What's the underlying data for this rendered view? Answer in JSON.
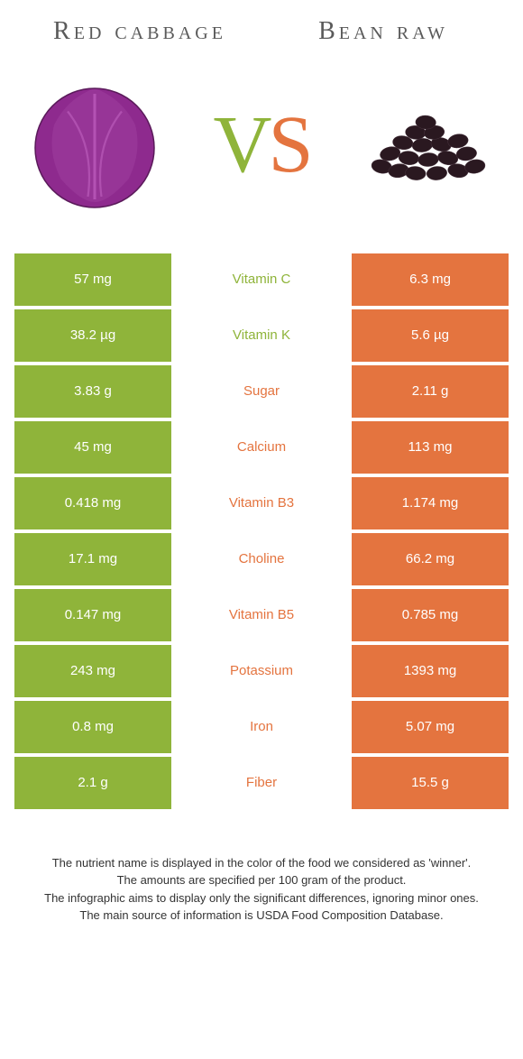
{
  "header": {
    "left_title": "Red cabbage",
    "right_title": "Bean raw",
    "vs_v": "V",
    "vs_s": "S"
  },
  "colors": {
    "green": "#8fb43a",
    "orange": "#e4743f",
    "text_green": "#8fb43a",
    "text_orange": "#e4743f"
  },
  "table": {
    "rows": [
      {
        "left": "57 mg",
        "mid": "Vitamin C",
        "right": "6.3 mg",
        "winner": "left"
      },
      {
        "left": "38.2 µg",
        "mid": "Vitamin K",
        "right": "5.6 µg",
        "winner": "left"
      },
      {
        "left": "3.83 g",
        "mid": "Sugar",
        "right": "2.11 g",
        "winner": "right"
      },
      {
        "left": "45 mg",
        "mid": "Calcium",
        "right": "113 mg",
        "winner": "right"
      },
      {
        "left": "0.418 mg",
        "mid": "Vitamin B3",
        "right": "1.174 mg",
        "winner": "right"
      },
      {
        "left": "17.1 mg",
        "mid": "Choline",
        "right": "66.2 mg",
        "winner": "right"
      },
      {
        "left": "0.147 mg",
        "mid": "Vitamin B5",
        "right": "0.785 mg",
        "winner": "right"
      },
      {
        "left": "243 mg",
        "mid": "Potassium",
        "right": "1393 mg",
        "winner": "right"
      },
      {
        "left": "0.8 mg",
        "mid": "Iron",
        "right": "5.07 mg",
        "winner": "right"
      },
      {
        "left": "2.1 g",
        "mid": "Fiber",
        "right": "15.5 g",
        "winner": "right"
      }
    ]
  },
  "footnotes": [
    "The nutrient name is displayed in the color of the food we considered as 'winner'.",
    "The amounts are specified per 100 gram of the product.",
    "The infographic aims to display only the significant differences, ignoring minor ones.",
    "The main source of information is USDA Food Composition Database."
  ]
}
